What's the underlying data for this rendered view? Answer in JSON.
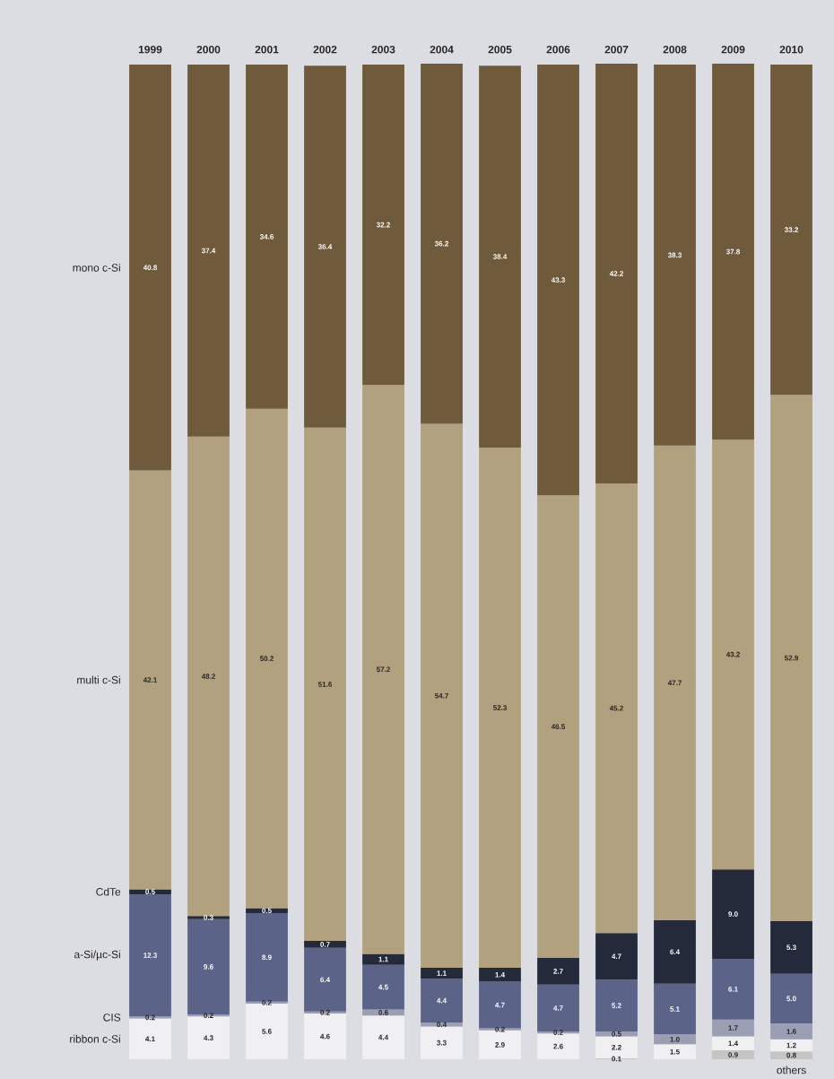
{
  "chart_data": {
    "type": "bar",
    "stacked": true,
    "categories": [
      "1999",
      "2000",
      "2001",
      "2002",
      "2003",
      "2004",
      "2005",
      "2006",
      "2007",
      "2008",
      "2009",
      "2010"
    ],
    "series": [
      {
        "name": "others",
        "color": "#c4c4c4",
        "values": [
          null,
          null,
          null,
          null,
          null,
          null,
          null,
          null,
          0.1,
          null,
          0.9,
          0.8
        ],
        "value_labels": [
          null,
          null,
          null,
          null,
          null,
          null,
          null,
          null,
          "0.1",
          null,
          "0.9",
          "0.8"
        ]
      },
      {
        "name": "ribbon c-Si",
        "color": "#f0f0f2",
        "values": [
          4.1,
          4.3,
          5.6,
          4.6,
          4.4,
          3.3,
          2.9,
          2.6,
          2.2,
          1.5,
          1.4,
          1.2
        ],
        "value_labels": [
          "4.1",
          "4.3",
          "5.6",
          "4.6",
          "4.4",
          "3.3",
          "2.9",
          "2.6",
          "2.2",
          "1.5",
          "1.4",
          "1.2"
        ]
      },
      {
        "name": "CIS",
        "color": "#9c9eb4",
        "values": [
          0.2,
          0.2,
          0.2,
          0.2,
          0.6,
          0.4,
          0.2,
          0.2,
          0.5,
          1.0,
          1.7,
          1.6
        ],
        "value_labels": [
          "0.2",
          "0.2",
          "0.2",
          "0.2",
          "0.6",
          "0.4",
          "0.2",
          "0.2",
          "0.5",
          "1.0",
          "1.7",
          "1.6"
        ]
      },
      {
        "name": "a-Si/µc-Si",
        "color": "#5b6488",
        "values": [
          12.3,
          9.6,
          8.9,
          6.4,
          4.5,
          4.4,
          4.7,
          4.7,
          5.2,
          5.1,
          6.1,
          5.0
        ],
        "value_labels": [
          "12.3",
          "9.6",
          "8.9",
          "6.4",
          "4.5",
          "4.4",
          "4.7",
          "4.7",
          "5.2",
          "5.1",
          "6.1",
          "5.0"
        ]
      },
      {
        "name": "CdTe",
        "color": "#252a3a",
        "values": [
          0.5,
          0.3,
          0.5,
          0.7,
          1.1,
          1.1,
          1.4,
          2.7,
          4.7,
          6.4,
          9.0,
          5.3
        ],
        "value_labels": [
          "0.5",
          "0.3",
          "0.5",
          "0.7",
          "1.1",
          "1.1",
          "1.4",
          "2.7",
          "4.7",
          "6.4",
          "9.0",
          "5.3"
        ]
      },
      {
        "name": "multi c-Si",
        "color": "#b1a17f",
        "values": [
          42.1,
          48.2,
          50.2,
          51.6,
          57.2,
          54.7,
          52.3,
          46.5,
          45.2,
          47.7,
          43.2,
          52.9
        ],
        "value_labels": [
          "42.1",
          "48.2",
          "50.2",
          "51.6",
          "57.2",
          "54.7",
          "52.3",
          "46.5",
          "45.2",
          "47.7",
          "43.2",
          "52.9"
        ]
      },
      {
        "name": "mono c-Si",
        "color": "#6f5b3b",
        "values": [
          40.8,
          37.4,
          34.6,
          36.4,
          32.2,
          36.2,
          38.4,
          43.3,
          42.2,
          38.3,
          37.8,
          33.2
        ],
        "value_labels": [
          "40.8",
          "37.4",
          "34.6",
          "36.4",
          "32.2",
          "36.2",
          "38.4",
          "43.3",
          "42.2",
          "38.3",
          "37.8",
          "33.2"
        ]
      }
    ]
  }
}
